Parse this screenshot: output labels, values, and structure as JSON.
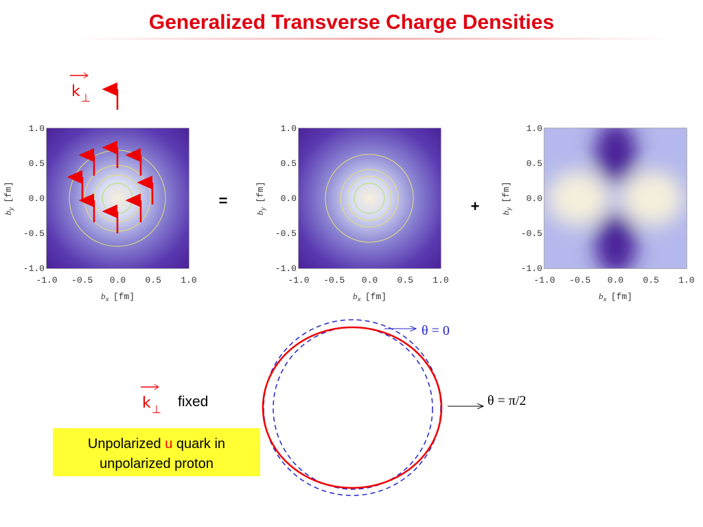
{
  "title": "Generalized Transverse Charge Densities",
  "ticks": [
    "-1.0",
    "-0.5",
    "0.0",
    "0.5",
    "1.0"
  ],
  "xlabel": {
    "symbol": "b",
    "sub": "x",
    "unit": "[fm]"
  },
  "ylabel": {
    "symbol": "b",
    "sub": "y",
    "unit": "[fm]"
  },
  "operators": [
    "=",
    "+"
  ],
  "k_label": {
    "k": "k",
    "sub": "⊥"
  },
  "fixed": "fixed",
  "theta_labels": [
    "θ = 0",
    "θ = π/2"
  ],
  "box": {
    "before": "Unpolarized ",
    "highlight": "u",
    "after": " quark in",
    "line2": "unpolarized proton"
  }
}
